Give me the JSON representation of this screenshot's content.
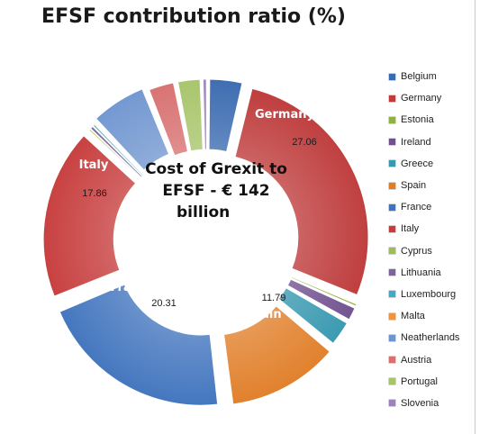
{
  "chart_data": {
    "type": "pie",
    "variant": "exploded-doughnut",
    "title": "EFSF contribution ratio (%)",
    "center_text": [
      "Cost of Grexit to",
      "EFSF - € 142",
      "billion"
    ],
    "legend_placement": "right",
    "slices": [
      {
        "name": "Belgium",
        "value": 3.65,
        "color": "#3a6ab0",
        "label": "",
        "value_label": ""
      },
      {
        "name": "Germany",
        "value": 27.06,
        "color": "#be3b3b",
        "label": "Germany",
        "value_label": "27.06"
      },
      {
        "name": "Estonia",
        "value": 0.27,
        "color": "#8eb044",
        "label": "",
        "value_label": ""
      },
      {
        "name": "Ireland",
        "value": 1.59,
        "color": "#70508f",
        "label": "",
        "value_label": ""
      },
      {
        "name": "Greece",
        "value": 2.81,
        "color": "#3798b0",
        "label": "",
        "value_label": ""
      },
      {
        "name": "Spain",
        "value": 11.79,
        "color": "#e07d26",
        "label": "Spain",
        "value_label": "11.79"
      },
      {
        "name": "France",
        "value": 20.31,
        "color": "#3f73bd",
        "label": "France",
        "value_label": "20.31"
      },
      {
        "name": "Italy",
        "value": 17.86,
        "color": "#c73c3c",
        "label": "Italy",
        "value_label": "17.86"
      },
      {
        "name": "Cyprus",
        "value": 0.2,
        "color": "#9cbd58",
        "label": "",
        "value_label": ""
      },
      {
        "name": "Lithuania",
        "value": 0.37,
        "color": "#7e63a0",
        "label": "",
        "value_label": ""
      },
      {
        "name": "Luxembourg",
        "value": 0.25,
        "color": "#46a8c4",
        "label": "",
        "value_label": ""
      },
      {
        "name": "Malta",
        "value": 0.09,
        "color": "#ec9446",
        "label": "",
        "value_label": ""
      },
      {
        "name": "Neatherlands",
        "value": 5.92,
        "color": "#6f95d0",
        "label": "",
        "value_label": ""
      },
      {
        "name": "Austria",
        "value": 2.88,
        "color": "#d87070",
        "label": "",
        "value_label": ""
      },
      {
        "name": "Portugal",
        "value": 2.58,
        "color": "#a7c46a",
        "label": "",
        "value_label": ""
      },
      {
        "name": "Slovenia",
        "value": 0.47,
        "color": "#9a84b8",
        "label": "",
        "value_label": ""
      }
    ]
  }
}
